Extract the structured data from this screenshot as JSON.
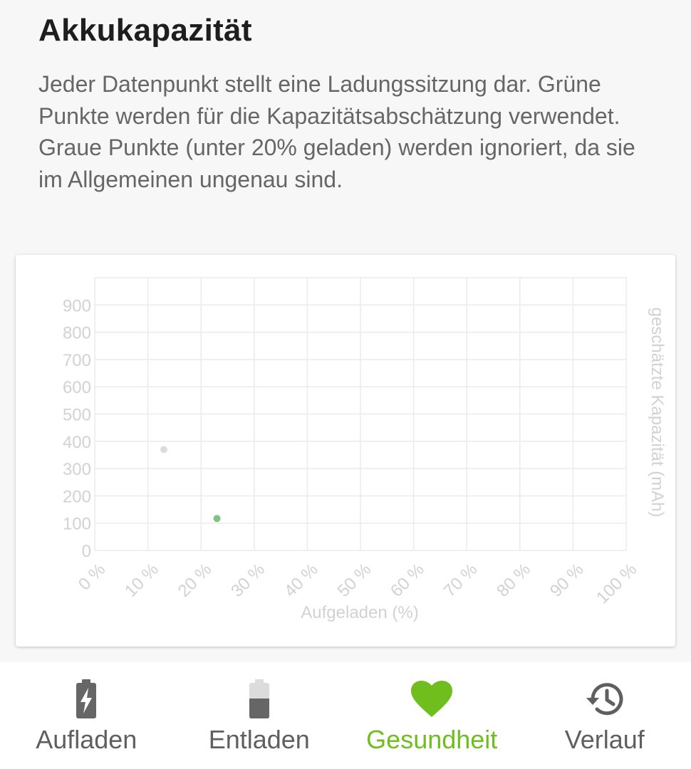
{
  "header": {
    "title": "Akkukapazität",
    "description": "Jeder Datenpunkt stellt eine Ladungssitzung dar. Grüne Punkte werden für die Kapazitätsabschät­zung verwendet. Graue Punkte (unter 20% geladen) werden ignoriert, da sie im Allgemeinen ungenau sind."
  },
  "chart_data": {
    "type": "scatter",
    "xlabel": "Aufgeladen (%)",
    "ylabel": "geschätzte Kapazität (mAh)",
    "xlim": [
      0,
      100
    ],
    "ylim": [
      0,
      1000
    ],
    "x_ticks": [
      "0 %",
      "10 %",
      "20 %",
      "30 %",
      "40 %",
      "50 %",
      "60 %",
      "70 %",
      "80 %",
      "90 %",
      "100 %"
    ],
    "y_ticks": [
      "0",
      "100",
      "200",
      "300",
      "400",
      "500",
      "600",
      "700",
      "800",
      "900"
    ],
    "grid": true,
    "series": [
      {
        "color": "#dcdcdc",
        "points": [
          {
            "x": 13,
            "y": 370
          }
        ]
      },
      {
        "color": "#7cc47f",
        "points": [
          {
            "x": 23,
            "y": 117
          }
        ]
      }
    ],
    "colors": {
      "grid": "#ebebeb",
      "text": "#d2d2d2"
    }
  },
  "nav": {
    "active_color": "#6fbe1e",
    "items": [
      {
        "label": "Aufladen",
        "icon": "battery-charging-icon"
      },
      {
        "label": "Entladen",
        "icon": "battery-discharging-icon"
      },
      {
        "label": "Gesundheit",
        "icon": "heart-icon"
      },
      {
        "label": "Verlauf",
        "icon": "history-icon"
      }
    ]
  }
}
